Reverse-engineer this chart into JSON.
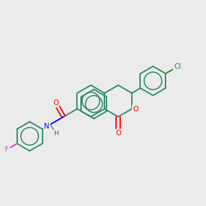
{
  "background_color": "#ebebeb",
  "bond_color": "#2d8c6e",
  "atom_colors": {
    "O": "#ff0000",
    "N": "#0000ff",
    "F": "#cc44cc",
    "Cl": "#228B22",
    "H": "#444444",
    "C": "#2d8c6e"
  },
  "figsize": [
    3.0,
    3.0
  ],
  "dpi": 100,
  "lw": 1.4,
  "r_hex": 0.72
}
